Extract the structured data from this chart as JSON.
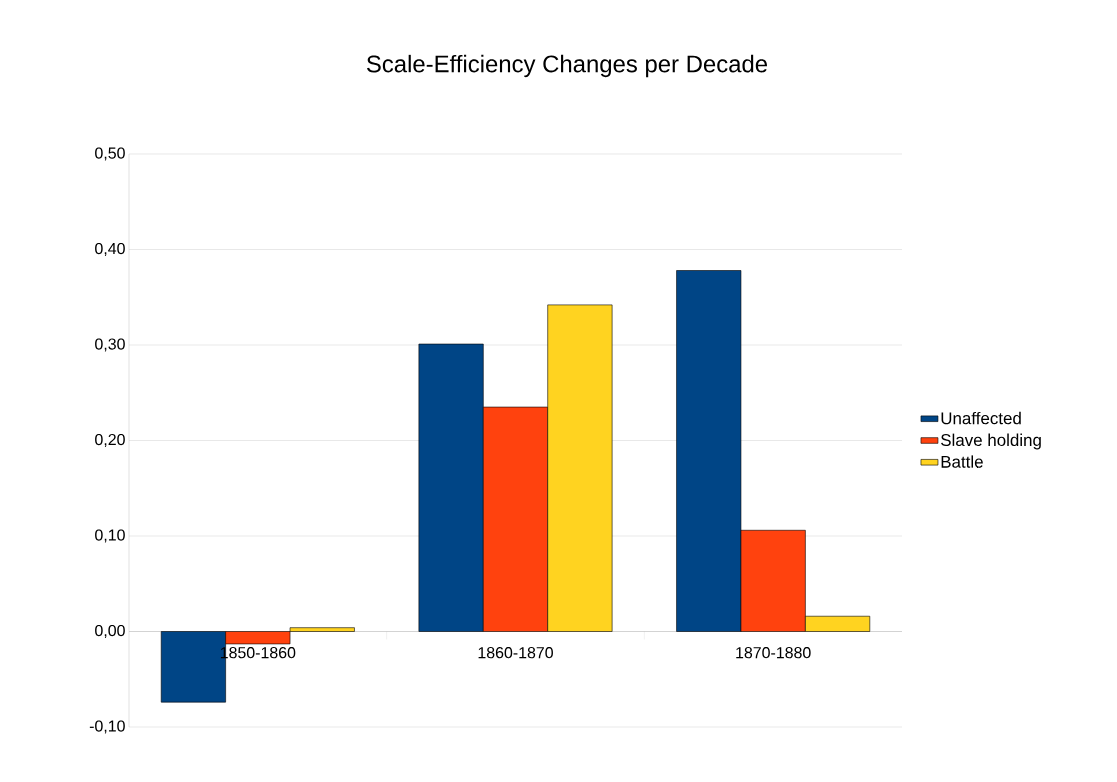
{
  "chart_data": {
    "type": "bar",
    "title": "Scale-Efficiency Changes per Decade",
    "categories": [
      "1850-1860",
      "1860-1870",
      "1870-1880"
    ],
    "series": [
      {
        "name": "Unaffected",
        "color": "#004586",
        "values": [
          -0.074,
          0.301,
          0.378
        ]
      },
      {
        "name": "Slave holding",
        "color": "#ff420e",
        "values": [
          -0.013,
          0.235,
          0.106
        ]
      },
      {
        "name": "Battle",
        "color": "#ffd320",
        "values": [
          0.004,
          0.342,
          0.016
        ]
      }
    ],
    "ylim": [
      -0.1,
      0.5
    ],
    "yticks": [
      {
        "value": -0.1,
        "label": "-0,10"
      },
      {
        "value": 0,
        "label": "0,00"
      },
      {
        "value": 0.1,
        "label": "0,10"
      },
      {
        "value": 0.2,
        "label": "0,20"
      },
      {
        "value": 0.3,
        "label": "0,30"
      },
      {
        "value": 0.4,
        "label": "0,40"
      },
      {
        "value": 0.5,
        "label": "0,50"
      }
    ],
    "grid": "y",
    "legend": "right"
  }
}
